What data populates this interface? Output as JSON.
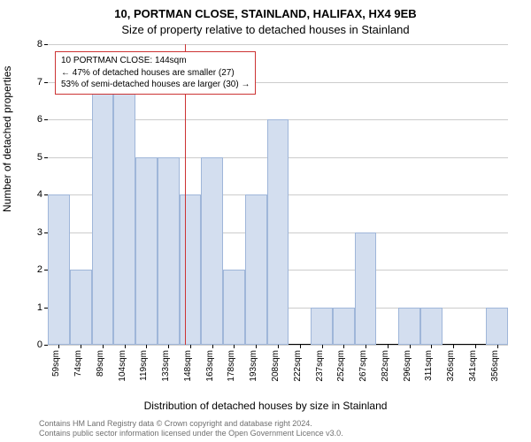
{
  "title_main": "10, PORTMAN CLOSE, STAINLAND, HALIFAX, HX4 9EB",
  "title_sub": "Size of property relative to detached houses in Stainland",
  "y_label": "Number of detached properties",
  "x_label": "Distribution of detached houses by size in Stainland",
  "attribution_line1": "Contains HM Land Registry data © Crown copyright and database right 2024.",
  "attribution_line2": "Contains public sector information licensed under the Open Government Licence v3.0.",
  "chart": {
    "type": "histogram",
    "ylim": [
      0,
      8
    ],
    "ytick_step": 1,
    "background_color": "#ffffff",
    "grid_color": "#cccccc",
    "bar_fill": "#d3deef",
    "bar_border": "#9fb6d9",
    "bar_width_ratio": 1.0,
    "x_categories": [
      "59sqm",
      "74sqm",
      "89sqm",
      "104sqm",
      "119sqm",
      "133sqm",
      "148sqm",
      "163sqm",
      "178sqm",
      "193sqm",
      "208sqm",
      "222sqm",
      "237sqm",
      "252sqm",
      "267sqm",
      "282sqm",
      "296sqm",
      "311sqm",
      "326sqm",
      "341sqm",
      "356sqm"
    ],
    "values": [
      4,
      2,
      7,
      7,
      5,
      5,
      4,
      5,
      2,
      4,
      6,
      0,
      1,
      1,
      3,
      0,
      1,
      1,
      0,
      0,
      1
    ],
    "annotation": {
      "lines": [
        "10 PORTMAN CLOSE: 144sqm",
        "← 47% of detached houses are smaller (27)",
        "53% of semi-detached houses are larger (30) →"
      ],
      "line_color": "#cc3333",
      "box_border": "#cc3333",
      "vertical_line_category_index": 5.75
    }
  }
}
